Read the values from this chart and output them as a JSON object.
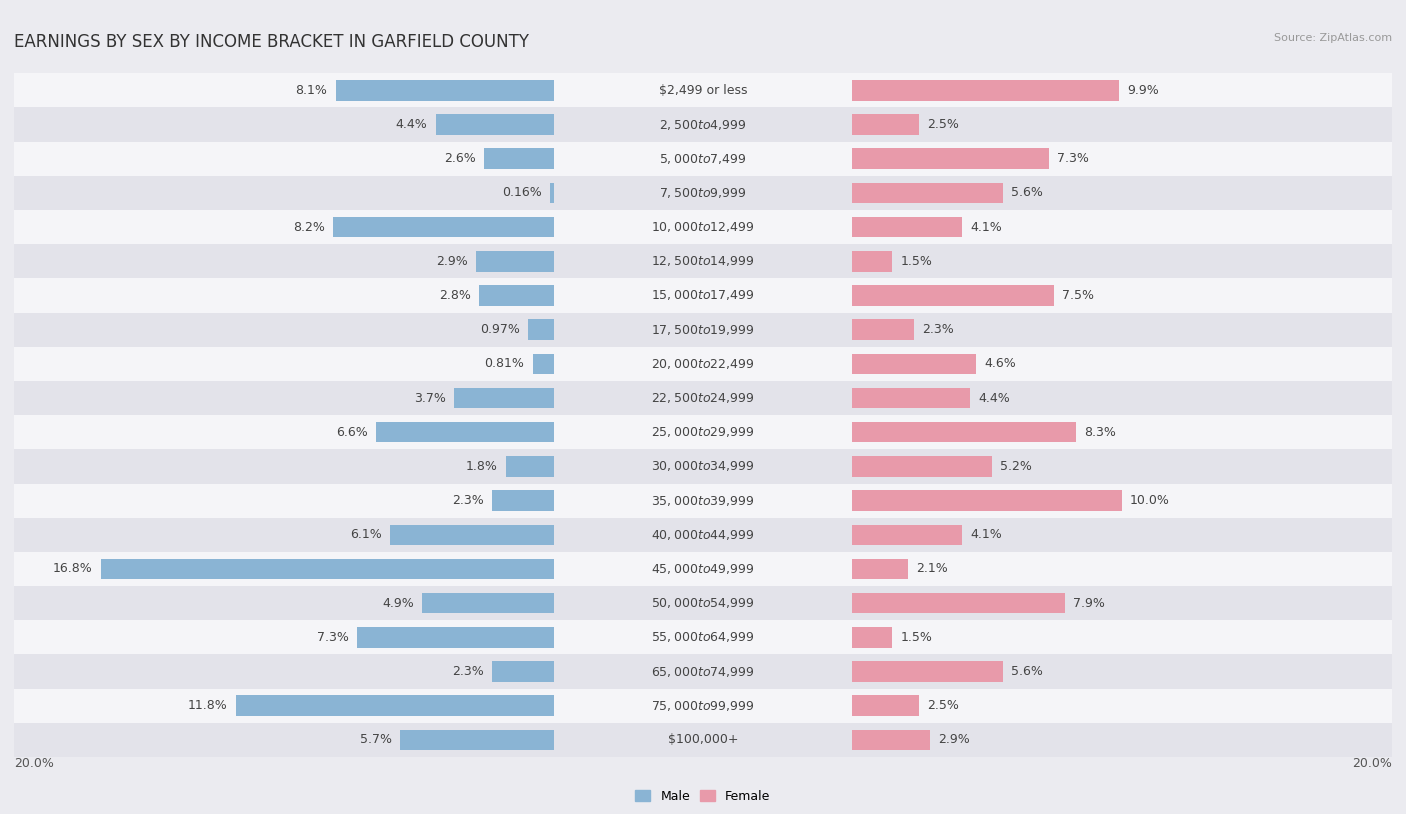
{
  "title": "EARNINGS BY SEX BY INCOME BRACKET IN GARFIELD COUNTY",
  "source": "Source: ZipAtlas.com",
  "categories": [
    "$2,499 or less",
    "$2,500 to $4,999",
    "$5,000 to $7,499",
    "$7,500 to $9,999",
    "$10,000 to $12,499",
    "$12,500 to $14,999",
    "$15,000 to $17,499",
    "$17,500 to $19,999",
    "$20,000 to $22,499",
    "$22,500 to $24,999",
    "$25,000 to $29,999",
    "$30,000 to $34,999",
    "$35,000 to $39,999",
    "$40,000 to $44,999",
    "$45,000 to $49,999",
    "$50,000 to $54,999",
    "$55,000 to $64,999",
    "$65,000 to $74,999",
    "$75,000 to $99,999",
    "$100,000+"
  ],
  "male_values": [
    8.1,
    4.4,
    2.6,
    0.16,
    8.2,
    2.9,
    2.8,
    0.97,
    0.81,
    3.7,
    6.6,
    1.8,
    2.3,
    6.1,
    16.8,
    4.9,
    7.3,
    2.3,
    11.8,
    5.7
  ],
  "female_values": [
    9.9,
    2.5,
    7.3,
    5.6,
    4.1,
    1.5,
    7.5,
    2.3,
    4.6,
    4.4,
    8.3,
    5.2,
    10.0,
    4.1,
    2.1,
    7.9,
    1.5,
    5.6,
    2.5,
    2.9
  ],
  "male_color": "#8ab4d4",
  "female_color": "#e89aaa",
  "bar_height": 0.6,
  "xlim": 20.0,
  "background_color": "#ebebf0",
  "row_colors": [
    "#f5f5f8",
    "#e3e3ea"
  ],
  "title_fontsize": 12,
  "label_fontsize": 9,
  "category_fontsize": 9,
  "source_fontsize": 8
}
